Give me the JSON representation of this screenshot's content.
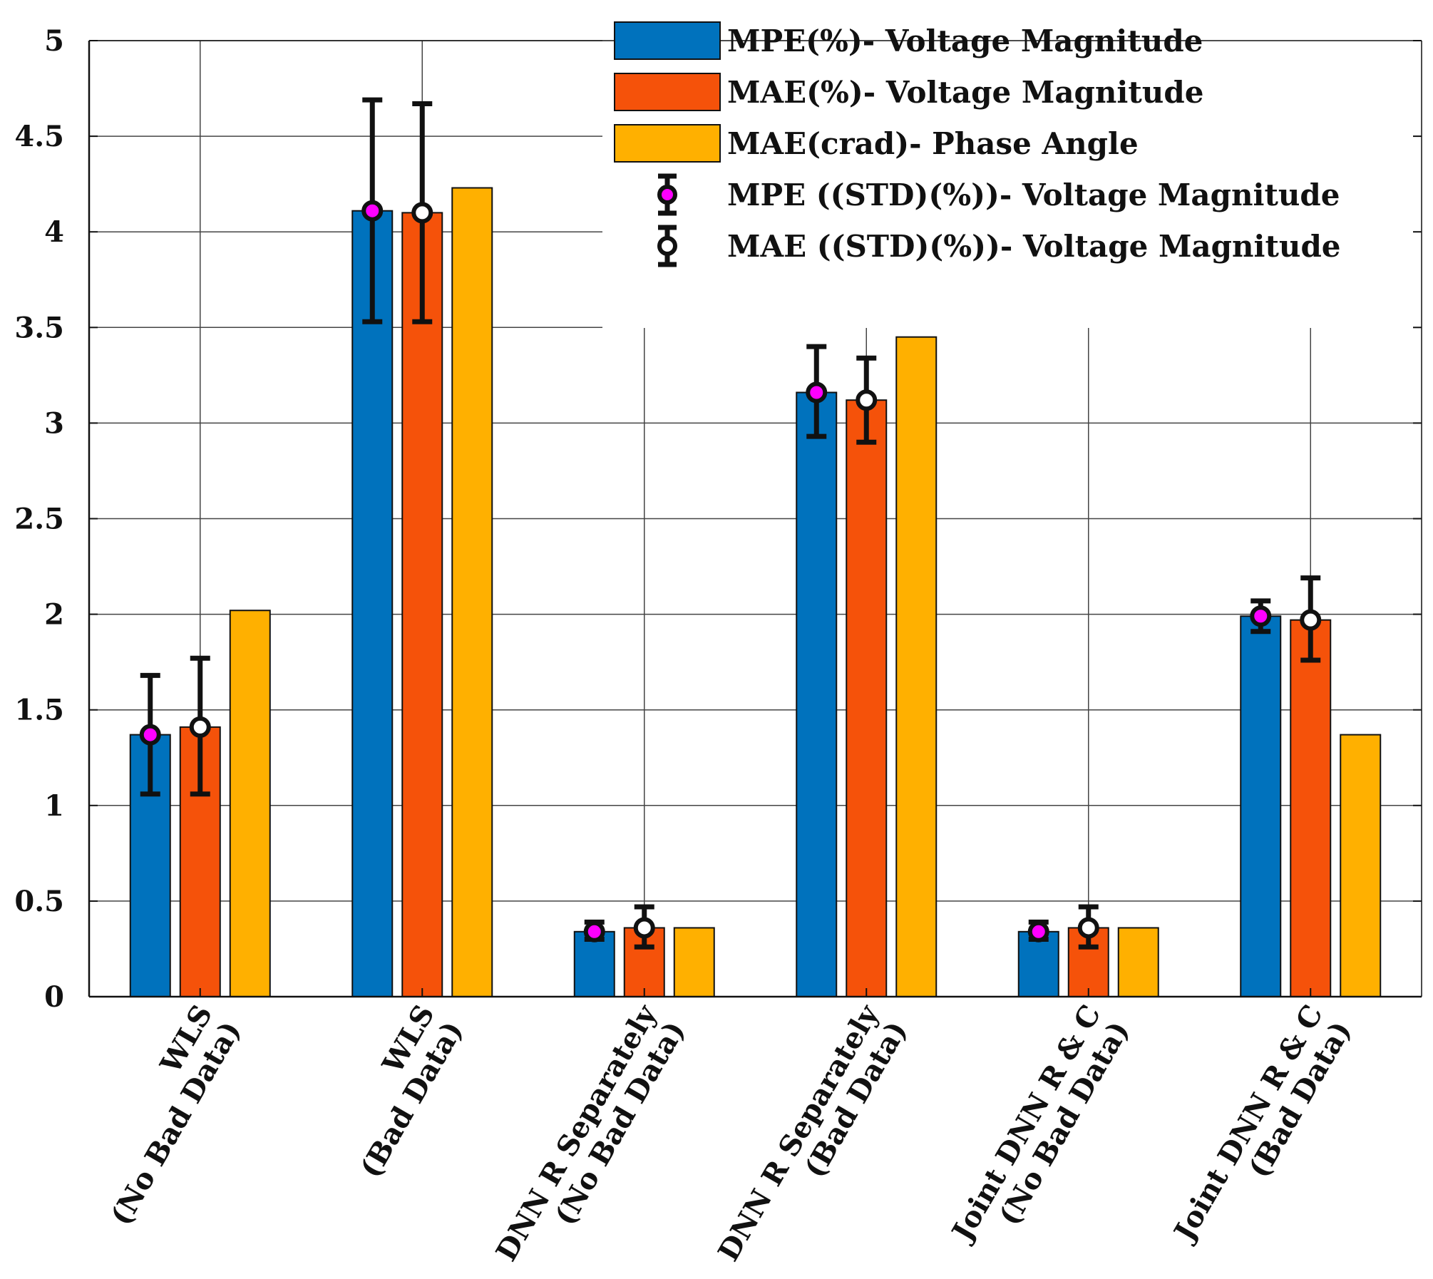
{
  "chart_data": {
    "type": "bar",
    "title": "",
    "xlabel": "",
    "ylabel": "",
    "ylim": [
      0,
      5
    ],
    "yticks": [
      "0",
      "0.5",
      "1",
      "1.5",
      "2",
      "2.5",
      "3",
      "3.5",
      "4",
      "4.5",
      "5"
    ],
    "grid": true,
    "legend_position": "top-right",
    "categories": [
      [
        "WLS",
        "(No Bad Data)"
      ],
      [
        "WLS",
        "(Bad Data)"
      ],
      [
        "DNN R Separately",
        "(No Bad Data)"
      ],
      [
        "DNN R Separately",
        "(Bad Data)"
      ],
      [
        "Joint DNN R & C",
        "(No Bad Data)"
      ],
      [
        "Joint DNN R & C",
        "(Bad Data)"
      ]
    ],
    "series": [
      {
        "name": "MPE(%)- Voltage Magnitude",
        "color": "#0072BD",
        "values": [
          1.37,
          4.11,
          0.34,
          3.16,
          0.34,
          1.99
        ]
      },
      {
        "name": "MAE(%)- Voltage Magnitude",
        "color": "#F5520A",
        "values": [
          1.41,
          4.1,
          0.36,
          3.12,
          0.36,
          1.97
        ]
      },
      {
        "name": "MAE(crad)- Phase Angle",
        "color": "#FFB000",
        "values": [
          2.02,
          4.23,
          0.36,
          3.45,
          0.36,
          1.37
        ]
      }
    ],
    "error_bars": [
      {
        "name": "MPE ((STD)(%))- Voltage Magnitude",
        "series_index": 0,
        "marker": "magenta-filled-circle",
        "marker_color": "#FF00FF",
        "low": [
          1.06,
          3.53,
          0.3,
          2.93,
          0.3,
          1.91
        ],
        "high": [
          1.68,
          4.69,
          0.39,
          3.4,
          0.39,
          2.07
        ]
      },
      {
        "name": "MAE ((STD)(%))- Voltage Magnitude",
        "series_index": 1,
        "marker": "open-circle",
        "marker_color": "#ffffff",
        "low": [
          1.06,
          3.53,
          0.26,
          2.9,
          0.26,
          1.76
        ],
        "high": [
          1.77,
          4.67,
          0.47,
          3.34,
          0.47,
          2.19
        ]
      }
    ]
  }
}
